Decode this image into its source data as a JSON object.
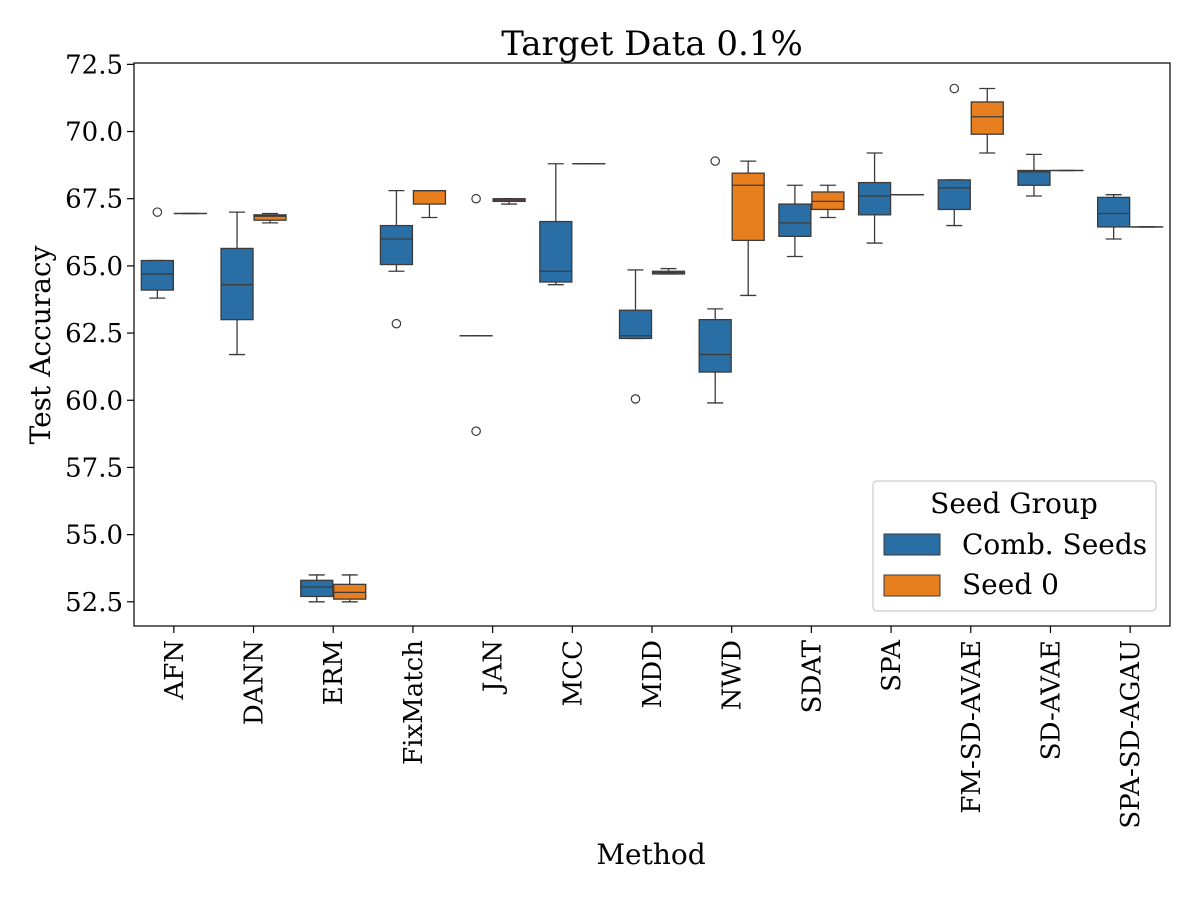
{
  "chart_data": {
    "type": "box",
    "title": "Target Data 0.1%",
    "xlabel": "Method",
    "ylabel": "Test Accuracy",
    "ylim": [
      51.6,
      72.55
    ],
    "yticks": [
      52.5,
      55.0,
      57.5,
      60.0,
      62.5,
      65.0,
      67.5,
      70.0,
      72.5
    ],
    "ytick_labels": [
      "52.5",
      "55.0",
      "57.5",
      "60.0",
      "62.5",
      "65.0",
      "67.5",
      "70.0",
      "72.5"
    ],
    "categories": [
      "AFN",
      "DANN",
      "ERM",
      "FixMatch",
      "JAN",
      "MCC",
      "MDD",
      "NWD",
      "SDAT",
      "SPA",
      "FM-SD-AVAE",
      "SD-AVAE",
      "SPA-SD-AGAU"
    ],
    "legend": {
      "title": "Seed Group",
      "location": "lower-right"
    },
    "series": [
      {
        "name": "Comb. Seeds",
        "color": "#2a6ea6",
        "boxes": [
          {
            "whislo": 63.8,
            "q1": 64.1,
            "med": 64.7,
            "q3": 65.2,
            "whishi": 65.2,
            "fliers": [
              67.0
            ]
          },
          {
            "whislo": 61.7,
            "q1": 63.0,
            "med": 64.3,
            "q3": 65.65,
            "whishi": 67.0,
            "fliers": []
          },
          {
            "whislo": 52.5,
            "q1": 52.7,
            "med": 53.05,
            "q3": 53.3,
            "whishi": 53.5,
            "fliers": []
          },
          {
            "whislo": 64.8,
            "q1": 65.05,
            "med": 66.0,
            "q3": 66.5,
            "whishi": 67.8,
            "fliers": [
              62.85
            ]
          },
          {
            "whislo": 62.4,
            "q1": 62.4,
            "med": 62.4,
            "q3": 62.4,
            "whishi": 62.4,
            "fliers": [
              67.5,
              58.85
            ]
          },
          {
            "whislo": 64.3,
            "q1": 64.4,
            "med": 64.8,
            "q3": 66.65,
            "whishi": 68.8,
            "fliers": []
          },
          {
            "whislo": 62.3,
            "q1": 62.3,
            "med": 62.4,
            "q3": 63.35,
            "whishi": 64.85,
            "fliers": [
              60.05
            ]
          },
          {
            "whislo": 59.9,
            "q1": 61.05,
            "med": 61.7,
            "q3": 63.0,
            "whishi": 63.4,
            "fliers": [
              68.9
            ]
          },
          {
            "whislo": 65.35,
            "q1": 66.1,
            "med": 66.6,
            "q3": 67.3,
            "whishi": 68.0,
            "fliers": []
          },
          {
            "whislo": 65.85,
            "q1": 66.9,
            "med": 67.6,
            "q3": 68.1,
            "whishi": 69.2,
            "fliers": []
          },
          {
            "whislo": 66.5,
            "q1": 67.1,
            "med": 67.9,
            "q3": 68.2,
            "whishi": 68.2,
            "fliers": [
              71.6
            ]
          },
          {
            "whislo": 67.6,
            "q1": 68.0,
            "med": 68.5,
            "q3": 68.55,
            "whishi": 69.15,
            "fliers": []
          },
          {
            "whislo": 66.0,
            "q1": 66.45,
            "med": 66.95,
            "q3": 67.55,
            "whishi": 67.65,
            "fliers": []
          }
        ]
      },
      {
        "name": "Seed 0",
        "color": "#e77f1e",
        "boxes": [
          {
            "whislo": 66.95,
            "q1": 66.95,
            "med": 66.95,
            "q3": 66.95,
            "whishi": 66.95,
            "fliers": []
          },
          {
            "whislo": 66.6,
            "q1": 66.7,
            "med": 66.85,
            "q3": 66.9,
            "whishi": 66.95,
            "fliers": []
          },
          {
            "whislo": 52.5,
            "q1": 52.6,
            "med": 52.85,
            "q3": 53.15,
            "whishi": 53.5,
            "fliers": []
          },
          {
            "whislo": 66.8,
            "q1": 67.3,
            "med": 67.8,
            "q3": 67.8,
            "whishi": 67.8,
            "fliers": []
          },
          {
            "whislo": 67.3,
            "q1": 67.4,
            "med": 67.45,
            "q3": 67.5,
            "whishi": 67.5,
            "fliers": []
          },
          {
            "whislo": 68.8,
            "q1": 68.8,
            "med": 68.8,
            "q3": 68.8,
            "whishi": 68.8,
            "fliers": []
          },
          {
            "whislo": 64.7,
            "q1": 64.7,
            "med": 64.75,
            "q3": 64.8,
            "whishi": 64.9,
            "fliers": []
          },
          {
            "whislo": 63.9,
            "q1": 65.95,
            "med": 68.0,
            "q3": 68.45,
            "whishi": 68.9,
            "fliers": []
          },
          {
            "whislo": 66.8,
            "q1": 67.1,
            "med": 67.4,
            "q3": 67.75,
            "whishi": 68.0,
            "fliers": []
          },
          {
            "whislo": 67.65,
            "q1": 67.65,
            "med": 67.65,
            "q3": 67.65,
            "whishi": 67.65,
            "fliers": []
          },
          {
            "whislo": 69.2,
            "q1": 69.9,
            "med": 70.55,
            "q3": 71.1,
            "whishi": 71.6,
            "fliers": []
          },
          {
            "whislo": 68.55,
            "q1": 68.55,
            "med": 68.55,
            "q3": 68.55,
            "whishi": 68.55,
            "fliers": []
          },
          {
            "whislo": 66.45,
            "q1": 66.45,
            "med": 66.45,
            "q3": 66.45,
            "whishi": 66.45,
            "fliers": []
          }
        ]
      }
    ]
  }
}
